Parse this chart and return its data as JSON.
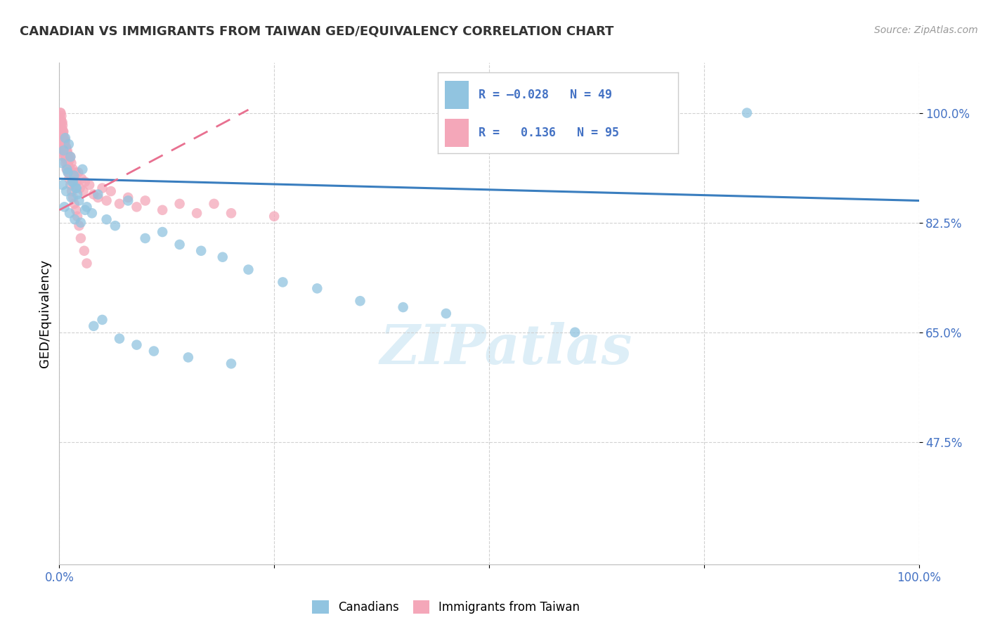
{
  "title": "CANADIAN VS IMMIGRANTS FROM TAIWAN GED/EQUIVALENCY CORRELATION CHART",
  "source": "Source: ZipAtlas.com",
  "ylabel": "GED/Equivalency",
  "xlim": [
    0.0,
    100.0
  ],
  "ylim": [
    28.0,
    108.0
  ],
  "yticks": [
    47.5,
    65.0,
    82.5,
    100.0
  ],
  "xtick_labels": [
    "0.0%",
    "",
    "",
    "",
    "100.0%"
  ],
  "ytick_labels": [
    "47.5%",
    "65.0%",
    "82.5%",
    "100.0%"
  ],
  "r_canadian": -0.028,
  "n_canadian": 49,
  "r_taiwan": 0.136,
  "n_taiwan": 95,
  "blue_color": "#91c4e0",
  "pink_color": "#f4a7b9",
  "blue_line_color": "#3a7ebf",
  "pink_line_color": "#e87090",
  "background_color": "#ffffff",
  "blue_line_x": [
    0.0,
    100.0
  ],
  "blue_line_y": [
    89.5,
    86.0
  ],
  "pink_line_x": [
    0.0,
    22.0
  ],
  "pink_line_y": [
    84.5,
    100.5
  ],
  "canadians_x": [
    0.3,
    0.5,
    0.7,
    0.9,
    1.1,
    1.3,
    1.5,
    1.7,
    1.9,
    2.1,
    2.3,
    2.7,
    3.2,
    3.8,
    4.5,
    5.5,
    6.5,
    8.0,
    10.0,
    12.0,
    14.0,
    16.5,
    19.0,
    22.0,
    26.0,
    30.0,
    35.0,
    40.0,
    45.0,
    0.4,
    0.6,
    0.8,
    1.0,
    1.2,
    1.4,
    1.6,
    1.8,
    2.0,
    2.5,
    3.0,
    4.0,
    5.0,
    7.0,
    9.0,
    11.0,
    15.0,
    20.0,
    60.0,
    80.0
  ],
  "canadians_y": [
    92.0,
    94.0,
    96.0,
    91.0,
    95.0,
    93.0,
    89.0,
    90.0,
    88.0,
    87.0,
    86.0,
    91.0,
    85.0,
    84.0,
    87.0,
    83.0,
    82.0,
    86.0,
    80.0,
    81.0,
    79.0,
    78.0,
    77.0,
    75.0,
    73.0,
    72.0,
    70.0,
    69.0,
    68.0,
    88.5,
    85.0,
    87.5,
    90.5,
    84.0,
    86.5,
    89.0,
    83.0,
    88.0,
    82.5,
    84.5,
    66.0,
    67.0,
    64.0,
    63.0,
    62.0,
    61.0,
    60.0,
    65.0,
    100.0
  ],
  "taiwan_x": [
    0.05,
    0.08,
    0.1,
    0.12,
    0.15,
    0.18,
    0.2,
    0.22,
    0.25,
    0.28,
    0.3,
    0.32,
    0.35,
    0.38,
    0.4,
    0.42,
    0.45,
    0.48,
    0.5,
    0.52,
    0.55,
    0.58,
    0.6,
    0.62,
    0.65,
    0.68,
    0.7,
    0.72,
    0.75,
    0.78,
    0.8,
    0.82,
    0.85,
    0.88,
    0.9,
    0.92,
    0.95,
    0.98,
    1.0,
    1.05,
    1.1,
    1.15,
    1.2,
    1.25,
    1.3,
    1.35,
    1.4,
    1.5,
    1.6,
    1.7,
    1.8,
    1.9,
    2.0,
    2.2,
    2.4,
    2.6,
    2.8,
    3.0,
    3.5,
    4.0,
    4.5,
    5.0,
    5.5,
    6.0,
    7.0,
    8.0,
    9.0,
    10.0,
    12.0,
    14.0,
    16.0,
    18.0,
    20.0,
    25.0,
    0.15,
    0.25,
    0.35,
    0.45,
    0.55,
    0.65,
    0.75,
    0.85,
    0.95,
    1.05,
    1.15,
    1.3,
    1.45,
    1.6,
    1.75,
    1.95,
    2.1,
    2.3,
    2.5,
    2.9,
    3.2
  ],
  "taiwan_y": [
    96.0,
    98.0,
    97.0,
    95.5,
    100.0,
    99.0,
    97.5,
    96.5,
    98.5,
    94.0,
    96.0,
    97.5,
    95.0,
    98.0,
    94.5,
    96.5,
    95.5,
    97.0,
    93.0,
    95.5,
    94.0,
    96.0,
    93.5,
    95.0,
    94.5,
    93.0,
    95.5,
    92.0,
    94.0,
    93.5,
    92.5,
    94.5,
    91.0,
    93.0,
    92.5,
    94.0,
    91.5,
    93.5,
    92.0,
    91.5,
    93.0,
    90.5,
    92.5,
    91.0,
    93.0,
    90.0,
    92.0,
    89.5,
    91.0,
    90.0,
    88.5,
    90.5,
    89.0,
    90.5,
    88.0,
    89.5,
    87.5,
    89.0,
    88.5,
    87.0,
    86.5,
    88.0,
    86.0,
    87.5,
    85.5,
    86.5,
    85.0,
    86.0,
    84.5,
    85.5,
    84.0,
    85.5,
    84.0,
    83.5,
    100.0,
    99.5,
    98.5,
    97.0,
    95.5,
    94.5,
    93.5,
    92.5,
    91.5,
    90.5,
    89.5,
    88.5,
    87.5,
    86.5,
    85.5,
    84.5,
    83.5,
    82.0,
    80.0,
    78.0,
    76.0
  ]
}
